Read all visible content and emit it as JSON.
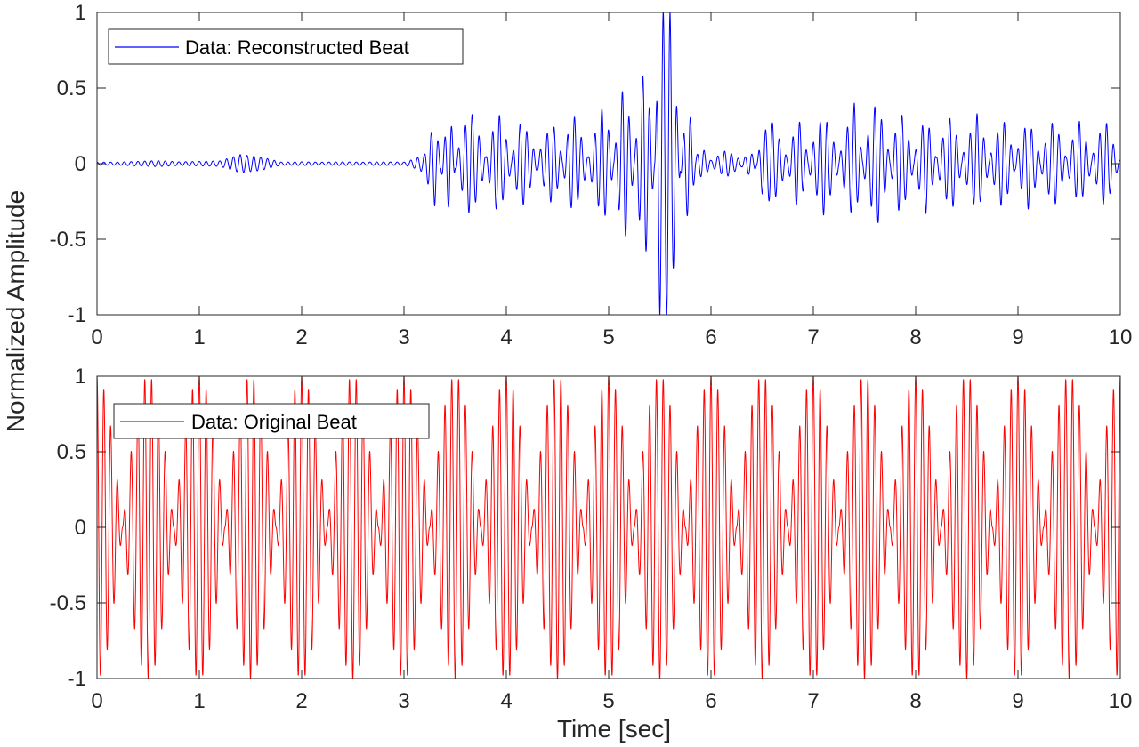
{
  "ylabel": "Normalized Amplitude",
  "xlabel": "Time [sec]",
  "chart_data": [
    {
      "type": "line",
      "series": [
        {
          "name": "Data: Reconstructed Beat",
          "color": "#0000ff",
          "carrier_hz": 15,
          "envelope": {
            "t": [
              0,
              0.2,
              0.4,
              0.6,
              0.8,
              1.0,
              1.2,
              1.4,
              1.6,
              1.8,
              2.0,
              2.2,
              2.4,
              2.6,
              2.8,
              3.0,
              3.1,
              3.2,
              3.3,
              3.36,
              3.45,
              3.5,
              3.65,
              3.8,
              3.92,
              4.05,
              4.15,
              4.3,
              4.45,
              4.55,
              4.65,
              4.8,
              4.95,
              5.05,
              5.15,
              5.25,
              5.35,
              5.45,
              5.5,
              5.6,
              5.7,
              5.78,
              5.85,
              5.92,
              6.0,
              6.15,
              6.3,
              6.38,
              6.45,
              6.5,
              6.6,
              6.75,
              6.85,
              6.95,
              7.1,
              7.25,
              7.4,
              7.48,
              7.62,
              7.75,
              7.85,
              7.98,
              8.1,
              8.2,
              8.35,
              8.45,
              8.6,
              8.72,
              8.85,
              8.97,
              9.1,
              9.22,
              9.35,
              9.47,
              9.6,
              9.72,
              9.85,
              9.97,
              10
            ],
            "amp": [
              0.01,
              0.01,
              0.015,
              0.02,
              0.012,
              0.015,
              0.018,
              0.06,
              0.045,
              0.01,
              0.012,
              0.01,
              0.012,
              0.01,
              0.012,
              0.01,
              0.03,
              0.06,
              0.28,
              0.04,
              0.34,
              0.03,
              0.36,
              0.04,
              0.35,
              0.04,
              0.3,
              0.04,
              0.28,
              0.04,
              0.34,
              0.04,
              0.4,
              0.04,
              0.56,
              0.05,
              0.68,
              0.05,
              1.0,
              1.0,
              0.05,
              0.4,
              0.05,
              0.1,
              0.02,
              0.09,
              0.02,
              0.08,
              0.02,
              0.2,
              0.27,
              0.03,
              0.32,
              0.04,
              0.34,
              0.04,
              0.4,
              0.04,
              0.43,
              0.04,
              0.36,
              0.04,
              0.33,
              0.04,
              0.33,
              0.04,
              0.33,
              0.04,
              0.31,
              0.04,
              0.3,
              0.04,
              0.3,
              0.04,
              0.28,
              0.04,
              0.3,
              0.05,
              0.02
            ]
          }
        }
      ],
      "xlim": [
        0,
        10
      ],
      "ylim": [
        -1,
        1
      ],
      "xticks": [
        "0",
        "1",
        "2",
        "3",
        "4",
        "5",
        "6",
        "7",
        "8",
        "9",
        "10"
      ],
      "yticks": [
        "-1",
        "-0.5",
        "0",
        "0.5",
        "1"
      ],
      "legend_location": "top-left",
      "grid": false
    },
    {
      "type": "line",
      "series": [
        {
          "name": "Data: Original Beat",
          "color": "#ff0000",
          "carrier_hz": 15,
          "beat_hz": 2,
          "peak_amplitude": 1
        }
      ],
      "xlim": [
        0,
        10
      ],
      "ylim": [
        -1,
        1
      ],
      "xticks": [
        "0",
        "1",
        "2",
        "3",
        "4",
        "5",
        "6",
        "7",
        "8",
        "9",
        "10"
      ],
      "yticks": [
        "-1",
        "-0.5",
        "0",
        "0.5",
        "1"
      ],
      "legend_location": "top-left",
      "grid": false
    }
  ]
}
